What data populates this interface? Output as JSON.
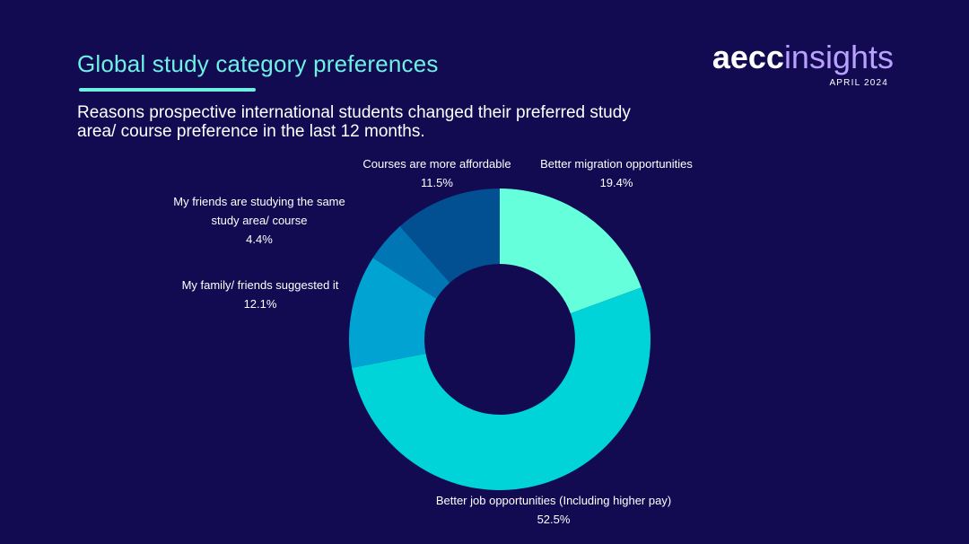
{
  "header": {
    "title": "Global study category preferences",
    "subtitle": "Reasons prospective international students changed their preferred study area/ course preference in the last 12 months."
  },
  "logo": {
    "brand_text": "aecc",
    "brand_text_2": "insights",
    "date": "APRIL 2024"
  },
  "colors": {
    "background": "#120b52",
    "accent": "#6ef0e2",
    "logo_accent": "#b9a2ff"
  },
  "chart_data": {
    "type": "pie",
    "donut": true,
    "start_angle_deg": 0,
    "direction": "clockwise",
    "slices": [
      {
        "label": "Better migration opportunities",
        "value": 19.4,
        "value_label": "19.4%",
        "color": "#66ffdc"
      },
      {
        "label": "Better job opportunities (Including higher pay)",
        "value": 52.5,
        "value_label": "52.5%",
        "color": "#00d4d9"
      },
      {
        "label": "My family/ friends suggested it",
        "value": 12.1,
        "value_label": "12.1%",
        "color": "#00a3d1"
      },
      {
        "label": "My friends are studying the same study area/ course",
        "label_lines": [
          "My friends are studying the same",
          "study area/ course"
        ],
        "value": 4.4,
        "value_label": "4.4%",
        "color": "#0076b4"
      },
      {
        "label": "Courses are more affordable",
        "value": 11.5,
        "value_label": "11.5%",
        "color": "#024f92"
      }
    ]
  }
}
